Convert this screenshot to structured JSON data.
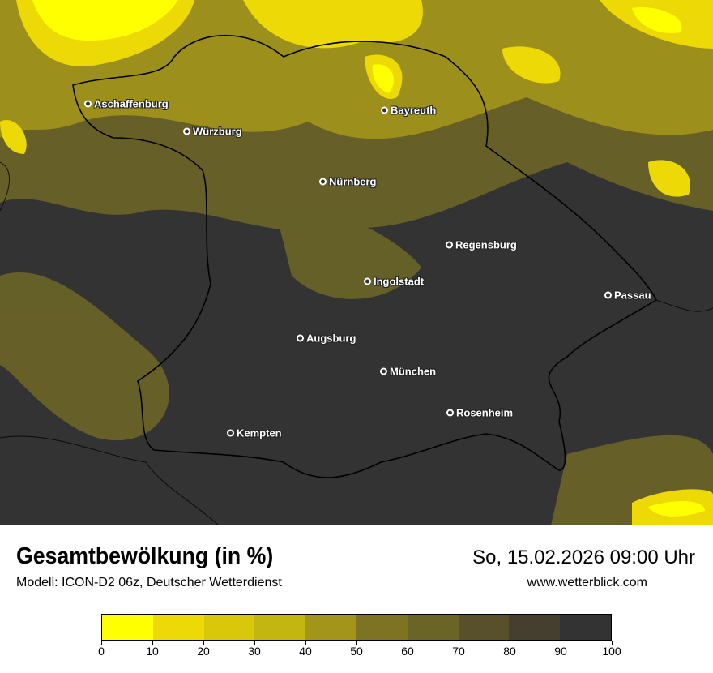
{
  "header": {
    "title": "Gesamtbewölkung (in %)",
    "subtitle": "Modell: ICON-D2 06z, Deutscher Wetterdienst",
    "datetime": "So, 15.02.2026 09:00 Uhr",
    "website": "www.wetterblick.com"
  },
  "map": {
    "region": "Bayern",
    "cities": [
      "Aschaffenburg",
      "Würzburg",
      "Bayreuth",
      "Nürnberg",
      "Regensburg",
      "Ingolstadt",
      "Passau",
      "Augsburg",
      "München",
      "Rosenheim",
      "Kempten"
    ]
  },
  "legend": {
    "ticks": [
      "0",
      "10",
      "20",
      "30",
      "40",
      "50",
      "60",
      "70",
      "80",
      "90",
      "100"
    ],
    "colors": [
      "#ffff00",
      "#ecd906",
      "#d9c80a",
      "#c4b611",
      "#a29519",
      "#7d7322",
      "#6b6427",
      "#57502b",
      "#443f2f",
      "#333333"
    ]
  }
}
